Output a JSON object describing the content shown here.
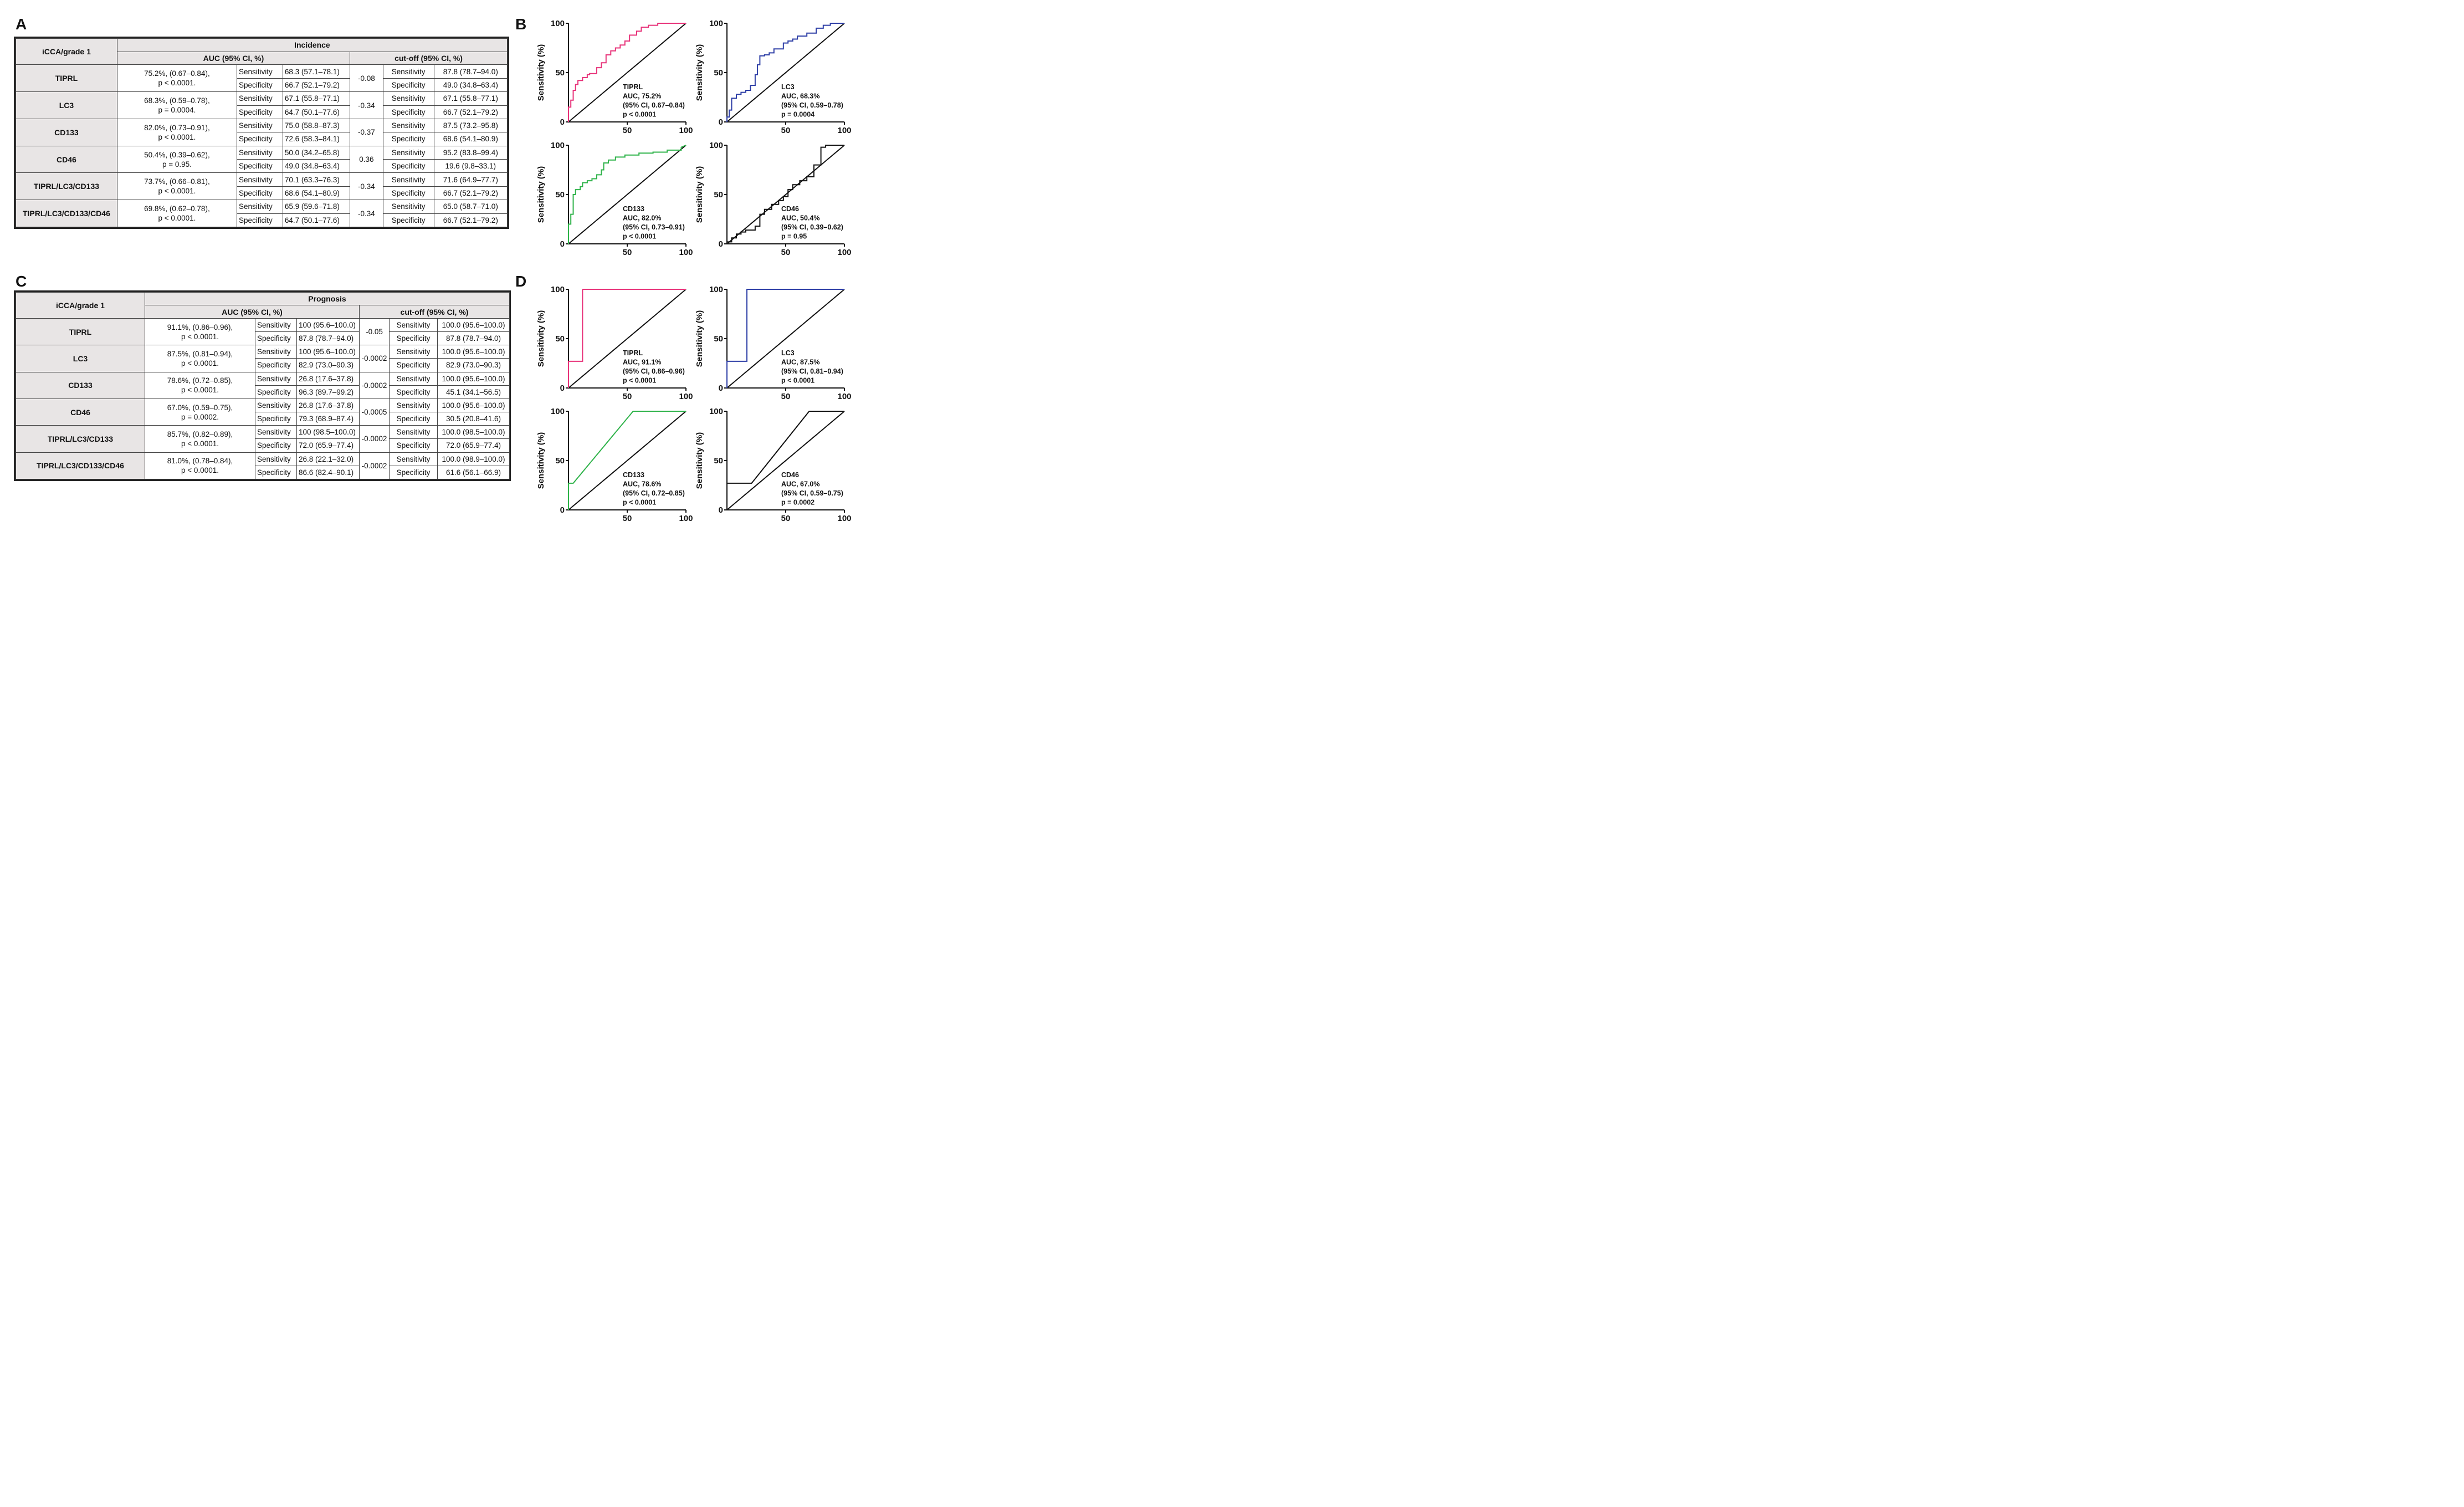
{
  "panels": {
    "A": "A",
    "B": "B",
    "C": "C",
    "D": "D"
  },
  "table_A": {
    "corner": "iCCA/grade 1",
    "group": "Incidence",
    "auc_header": "AUC (95% CI, %)",
    "cut_header": "cut-off (95% CI, %)",
    "rows": [
      {
        "marker": "TIPRL",
        "auc1": "75.2%, (0.67–0.84),",
        "auc2": "p < 0.0001.",
        "sens_label": "Sensitivity",
        "sens": "68.3 (57.1–78.1)",
        "spec_label": "Specificity",
        "spec": "66.7 (52.1–79.2)",
        "cutoff": "-0.08",
        "cs_label": "Sensitivity",
        "cs": "87.8 (78.7–94.0)",
        "cp_label": "Specificity",
        "cp": "49.0 (34.8–63.4)"
      },
      {
        "marker": "LC3",
        "auc1": "68.3%, (0.59–0.78),",
        "auc2": "p = 0.0004.",
        "sens_label": "Sensitivity",
        "sens": "67.1 (55.8–77.1)",
        "spec_label": "Specificity",
        "spec": "64.7 (50.1–77.6)",
        "cutoff": "-0.34",
        "cs_label": "Sensitivity",
        "cs": "67.1 (55.8–77.1)",
        "cp_label": "Specificity",
        "cp": "66.7 (52.1–79.2)"
      },
      {
        "marker": "CD133",
        "auc1": "82.0%, (0.73–0.91),",
        "auc2": "p < 0.0001.",
        "sens_label": "Sensitivity",
        "sens": "75.0 (58.8–87.3)",
        "spec_label": "Specificity",
        "spec": "72.6 (58.3–84.1)",
        "cutoff": "-0.37",
        "cs_label": "Sensitivity",
        "cs": "87.5 (73.2–95.8)",
        "cp_label": "Specificity",
        "cp": "68.6 (54.1–80.9)"
      },
      {
        "marker": "CD46",
        "auc1": "50.4%, (0.39–0.62),",
        "auc2": "p = 0.95.",
        "sens_label": "Sensitivity",
        "sens": "50.0 (34.2–65.8)",
        "spec_label": "Specificity",
        "spec": "49.0 (34.8–63.4)",
        "cutoff": "0.36",
        "cs_label": "Sensitivity",
        "cs": "95.2 (83.8–99.4)",
        "cp_label": "Specificity",
        "cp": "19.6 (9.8–33.1)"
      },
      {
        "marker": "TIPRL/LC3/CD133",
        "auc1": "73.7%, (0.66–0.81),",
        "auc2": "p < 0.0001.",
        "sens_label": "Sensitivity",
        "sens": "70.1 (63.3–76.3)",
        "spec_label": "Specificity",
        "spec": "68.6 (54.1–80.9)",
        "cutoff": "-0.34",
        "cs_label": "Sensitivity",
        "cs": "71.6 (64.9–77.7)",
        "cp_label": "Specificity",
        "cp": "66.7 (52.1–79.2)"
      },
      {
        "marker": "TIPRL/LC3/CD133/CD46",
        "auc1": "69.8%, (0.62–0.78),",
        "auc2": "p < 0.0001.",
        "sens_label": "Sensitivity",
        "sens": "65.9 (59.6–71.8)",
        "spec_label": "Specificity",
        "spec": "64.7 (50.1–77.6)",
        "cutoff": "-0.34",
        "cs_label": "Sensitivity",
        "cs": "65.0 (58.7–71.0)",
        "cp_label": "Specificity",
        "cp": "66.7 (52.1–79.2)"
      }
    ]
  },
  "table_C": {
    "corner": "iCCA/grade 1",
    "group": "Prognosis",
    "auc_header": "AUC (95% CI, %)",
    "cut_header": "cut-off (95% CI, %)",
    "rows": [
      {
        "marker": "TIPRL",
        "auc1": "91.1%, (0.86–0.96),",
        "auc2": "p < 0.0001.",
        "sens_label": "Sensitivity",
        "sens": "100 (95.6–100.0)",
        "spec_label": "Specificity",
        "spec": "87.8 (78.7–94.0)",
        "cutoff": "-0.05",
        "cs_label": "Sensitivity",
        "cs": "100.0 (95.6–100.0)",
        "cp_label": "Specificity",
        "cp": "87.8 (78.7–94.0)"
      },
      {
        "marker": "LC3",
        "auc1": "87.5%, (0.81–0.94),",
        "auc2": "p < 0.0001.",
        "sens_label": "Sensitivity",
        "sens": "100 (95.6–100.0)",
        "spec_label": "Specificity",
        "spec": "82.9 (73.0–90.3)",
        "cutoff": "-0.0002",
        "cs_label": "Sensitivity",
        "cs": "100.0 (95.6–100.0)",
        "cp_label": "Specificity",
        "cp": "82.9 (73.0–90.3)"
      },
      {
        "marker": "CD133",
        "auc1": "78.6%, (0.72–0.85),",
        "auc2": "p < 0.0001.",
        "sens_label": "Sensitivity",
        "sens": "26.8 (17.6–37.8)",
        "spec_label": "Specificity",
        "spec": "96.3 (89.7–99.2)",
        "cutoff": "-0.0002",
        "cs_label": "Sensitivity",
        "cs": "100.0 (95.6–100.0)",
        "cp_label": "Specificity",
        "cp": "45.1 (34.1–56.5)"
      },
      {
        "marker": "CD46",
        "auc1": "67.0%, (0.59–0.75),",
        "auc2": "p = 0.0002.",
        "sens_label": "Sensitivity",
        "sens": "26.8 (17.6–37.8)",
        "spec_label": "Specificity",
        "spec": "79.3 (68.9–87.4)",
        "cutoff": "-0.0005",
        "cs_label": "Sensitivity",
        "cs": "100.0 (95.6–100.0)",
        "cp_label": "Specificity",
        "cp": "30.5 (20.8–41.6)"
      },
      {
        "marker": "TIPRL/LC3/CD133",
        "auc1": "85.7%, (0.82–0.89),",
        "auc2": "p < 0.0001.",
        "sens_label": "Sensitivity",
        "sens": "100 (98.5–100.0)",
        "spec_label": "Specificity",
        "spec": "72.0 (65.9–77.4)",
        "cutoff": "-0.0002",
        "cs_label": "Sensitivity",
        "cs": "100.0 (98.5–100.0)",
        "cp_label": "Specificity",
        "cp": "72.0 (65.9–77.4)"
      },
      {
        "marker": "TIPRL/LC3/CD133/CD46",
        "auc1": "81.0%, (0.78–0.84),",
        "auc2": "p < 0.0001.",
        "sens_label": "Sensitivity",
        "sens": "26.8 (22.1–32.0)",
        "spec_label": "Specificity",
        "spec": "86.6 (82.4–90.1)",
        "cutoff": "-0.0002",
        "cs_label": "Sensitivity",
        "cs": "100.0 (98.9–100.0)",
        "cp_label": "Specificity",
        "cp": "61.6 (56.1–66.9)"
      }
    ]
  },
  "chart_data": [
    {
      "id": "B-TIPRL",
      "type": "line",
      "ylabel": "Sensitivity (%)",
      "xlabel": "",
      "xlim": [
        0,
        100
      ],
      "ylim": [
        0,
        100
      ],
      "xticks": [
        "50",
        "100"
      ],
      "yticks": [
        "0",
        "50",
        "100"
      ],
      "color": "#e8337a",
      "annotation": [
        "TIPRL",
        "AUC, 75.2%",
        "(95% CI, 0.67–0.84)",
        "p < 0.0001"
      ],
      "x": [
        0,
        0,
        2,
        2,
        4,
        4,
        6,
        6,
        8,
        8,
        12,
        12,
        16,
        16,
        18,
        18,
        24,
        24,
        28,
        28,
        32,
        32,
        36,
        36,
        40,
        40,
        44,
        44,
        48,
        48,
        52,
        52,
        58,
        58,
        62,
        62,
        68,
        68,
        76,
        76,
        100
      ],
      "y": [
        0,
        15,
        15,
        22,
        22,
        32,
        32,
        38,
        38,
        42,
        42,
        45,
        45,
        48,
        48,
        49,
        49,
        55,
        55,
        60,
        60,
        68,
        68,
        72,
        72,
        75,
        75,
        78,
        78,
        82,
        82,
        88,
        88,
        92,
        92,
        96,
        96,
        98,
        98,
        100,
        100
      ]
    },
    {
      "id": "B-LC3",
      "type": "line",
      "ylabel": "Sensitivity (%)",
      "xlabel": "",
      "xlim": [
        0,
        100
      ],
      "ylim": [
        0,
        100
      ],
      "xticks": [
        "50",
        "100"
      ],
      "yticks": [
        "0",
        "50",
        "100"
      ],
      "color": "#2d3ea6",
      "annotation": [
        "LC3",
        "AUC, 68.3%",
        "(95% CI, 0.59–0.78)",
        "p = 0.0004"
      ],
      "x": [
        0,
        0,
        2,
        2,
        4,
        4,
        8,
        8,
        12,
        12,
        16,
        16,
        20,
        20,
        24,
        24,
        26,
        26,
        28,
        28,
        32,
        32,
        36,
        36,
        40,
        40,
        48,
        48,
        52,
        52,
        56,
        56,
        60,
        60,
        68,
        68,
        76,
        76,
        82,
        82,
        88,
        88,
        100
      ],
      "y": [
        0,
        5,
        5,
        12,
        12,
        24,
        24,
        28,
        28,
        30,
        30,
        32,
        32,
        37,
        37,
        48,
        48,
        58,
        58,
        67,
        67,
        68,
        68,
        70,
        70,
        74,
        74,
        80,
        80,
        82,
        82,
        84,
        84,
        87,
        87,
        90,
        90,
        95,
        95,
        98,
        98,
        100,
        100
      ]
    },
    {
      "id": "B-CD133",
      "type": "line",
      "ylabel": "Sensitivity (%)",
      "xlabel": "",
      "xlim": [
        0,
        100
      ],
      "ylim": [
        0,
        100
      ],
      "xticks": [
        "50",
        "100"
      ],
      "yticks": [
        "0",
        "50",
        "100"
      ],
      "color": "#2fb34a",
      "annotation": [
        "CD133",
        "AUC, 82.0%",
        "(95% CI, 0.73–0.91)",
        "p < 0.0001"
      ],
      "x": [
        0,
        0,
        2,
        2,
        4,
        4,
        6,
        6,
        10,
        10,
        12,
        12,
        16,
        16,
        20,
        20,
        24,
        24,
        28,
        28,
        30,
        30,
        34,
        34,
        40,
        40,
        48,
        48,
        60,
        60,
        72,
        72,
        84,
        84,
        96,
        96,
        100
      ],
      "y": [
        0,
        20,
        20,
        30,
        30,
        50,
        50,
        55,
        55,
        58,
        58,
        62,
        62,
        64,
        64,
        66,
        66,
        70,
        70,
        75,
        75,
        82,
        82,
        85,
        85,
        88,
        88,
        90,
        90,
        92,
        92,
        93,
        93,
        95,
        95,
        98,
        100
      ]
    },
    {
      "id": "B-CD46",
      "type": "line",
      "ylabel": "Sensitivity (%)",
      "xlabel": "",
      "xlim": [
        0,
        100
      ],
      "ylim": [
        0,
        100
      ],
      "xticks": [
        "50",
        "100"
      ],
      "yticks": [
        "0",
        "50",
        "100"
      ],
      "color": "#111111",
      "annotation": [
        "CD46",
        "AUC, 50.4%",
        "(95% CI, 0.39–0.62)",
        "p = 0.95"
      ],
      "x": [
        0,
        0,
        4,
        4,
        8,
        8,
        12,
        12,
        16,
        16,
        24,
        24,
        28,
        28,
        32,
        32,
        38,
        38,
        44,
        44,
        48,
        48,
        52,
        52,
        56,
        56,
        62,
        62,
        68,
        68,
        74,
        74,
        80,
        80,
        84,
        84,
        100
      ],
      "y": [
        0,
        2,
        2,
        6,
        6,
        10,
        10,
        12,
        12,
        14,
        14,
        18,
        18,
        30,
        30,
        35,
        35,
        40,
        40,
        44,
        44,
        48,
        48,
        55,
        55,
        60,
        60,
        64,
        64,
        68,
        68,
        80,
        80,
        98,
        98,
        100,
        100
      ]
    },
    {
      "id": "D-TIPRL",
      "type": "line",
      "ylabel": "Sensitivity (%)",
      "xlabel": "",
      "xlim": [
        0,
        100
      ],
      "ylim": [
        0,
        100
      ],
      "xticks": [
        "50",
        "100"
      ],
      "yticks": [
        "0",
        "50",
        "100"
      ],
      "color": "#e8337a",
      "annotation": [
        "TIPRL",
        "AUC, 91.1%",
        "(95% CI, 0.86–0.96)",
        "p < 0.0001"
      ],
      "x": [
        0,
        0,
        12,
        12,
        100
      ],
      "y": [
        0,
        27,
        27,
        100,
        100
      ]
    },
    {
      "id": "D-LC3",
      "type": "line",
      "ylabel": "Sensitivity (%)",
      "xlabel": "",
      "xlim": [
        0,
        100
      ],
      "ylim": [
        0,
        100
      ],
      "xticks": [
        "50",
        "100"
      ],
      "yticks": [
        "0",
        "50",
        "100"
      ],
      "color": "#2d3ea6",
      "annotation": [
        "LC3",
        "AUC, 87.5%",
        "(95% CI, 0.81–0.94)",
        "p < 0.0001"
      ],
      "x": [
        0,
        0,
        17,
        17,
        100
      ],
      "y": [
        0,
        27,
        27,
        100,
        100
      ]
    },
    {
      "id": "D-CD133",
      "type": "line",
      "ylabel": "Sensitivity (%)",
      "xlabel": "",
      "xlim": [
        0,
        100
      ],
      "ylim": [
        0,
        100
      ],
      "xticks": [
        "50",
        "100"
      ],
      "yticks": [
        "0",
        "50",
        "100"
      ],
      "color": "#2fb34a",
      "annotation": [
        "CD133",
        "AUC, 78.6%",
        "(95% CI, 0.72–0.85)",
        "p < 0.0001"
      ],
      "x": [
        0,
        0,
        4,
        55,
        100
      ],
      "y": [
        0,
        27,
        27,
        100,
        100
      ]
    },
    {
      "id": "D-CD46",
      "type": "line",
      "ylabel": "Sensitivity (%)",
      "xlabel": "",
      "xlim": [
        0,
        100
      ],
      "ylim": [
        0,
        100
      ],
      "xticks": [
        "50",
        "100"
      ],
      "yticks": [
        "0",
        "50",
        "100"
      ],
      "color": "#111111",
      "annotation": [
        "CD46",
        "AUC, 67.0%",
        "(95% CI, 0.59–0.75)",
        "p = 0.0002"
      ],
      "x": [
        0,
        0,
        21,
        70,
        100
      ],
      "y": [
        0,
        27,
        27,
        100,
        100
      ]
    }
  ]
}
